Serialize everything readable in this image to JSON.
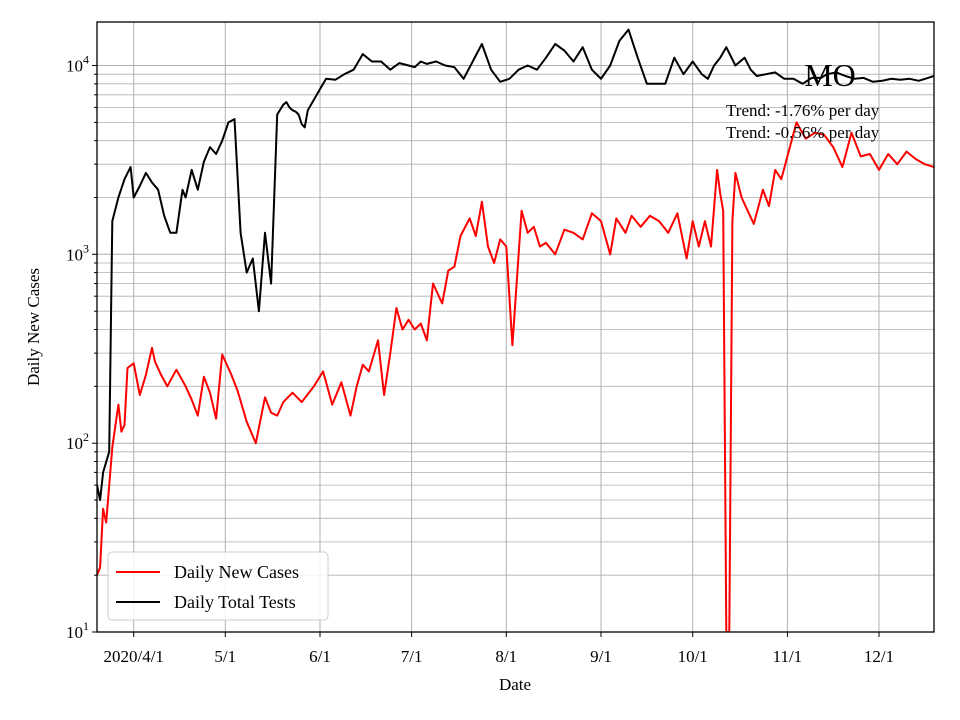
{
  "chart_data": {
    "type": "line",
    "title": "MO",
    "xlabel": "Date",
    "ylabel": "Daily New Cases",
    "y_scale": "log",
    "ylim": [
      10,
      17000
    ],
    "xlim": [
      "2020-03-20",
      "2020-12-19"
    ],
    "x_ticks": [
      {
        "date": "2020-04-01",
        "label": "2020/4/1"
      },
      {
        "date": "2020-05-01",
        "label": "5/1"
      },
      {
        "date": "2020-06-01",
        "label": "6/1"
      },
      {
        "date": "2020-07-01",
        "label": "7/1"
      },
      {
        "date": "2020-08-01",
        "label": "8/1"
      },
      {
        "date": "2020-09-01",
        "label": "9/1"
      },
      {
        "date": "2020-10-01",
        "label": "10/1"
      },
      {
        "date": "2020-11-01",
        "label": "11/1"
      },
      {
        "date": "2020-12-01",
        "label": "12/1"
      }
    ],
    "y_ticks": [
      {
        "value": 10,
        "base": "10",
        "exp": "1"
      },
      {
        "value": 100,
        "base": "10",
        "exp": "2"
      },
      {
        "value": 1000,
        "base": "10",
        "exp": "3"
      },
      {
        "value": 10000,
        "base": "10",
        "exp": "4"
      }
    ],
    "grid": true,
    "legend_position": "lower-left",
    "annotations": [
      "Trend: -1.76% per day",
      "Trend: -0.56% per day"
    ],
    "series": [
      {
        "name": "Daily New Cases",
        "color": "#ff0000",
        "x": [
          "2020-03-20",
          "2020-03-21",
          "2020-03-22",
          "2020-03-23",
          "2020-03-25",
          "2020-03-27",
          "2020-03-28",
          "2020-03-29",
          "2020-03-30",
          "2020-04-01",
          "2020-04-03",
          "2020-04-05",
          "2020-04-07",
          "2020-04-08",
          "2020-04-10",
          "2020-04-12",
          "2020-04-15",
          "2020-04-18",
          "2020-04-20",
          "2020-04-22",
          "2020-04-24",
          "2020-04-26",
          "2020-04-28",
          "2020-04-30",
          "2020-05-03",
          "2020-05-05",
          "2020-05-08",
          "2020-05-11",
          "2020-05-14",
          "2020-05-16",
          "2020-05-18",
          "2020-05-20",
          "2020-05-23",
          "2020-05-26",
          "2020-05-30",
          "2020-06-02",
          "2020-06-05",
          "2020-06-08",
          "2020-06-11",
          "2020-06-13",
          "2020-06-15",
          "2020-06-17",
          "2020-06-20",
          "2020-06-22",
          "2020-06-24",
          "2020-06-26",
          "2020-06-28",
          "2020-06-30",
          "2020-07-02",
          "2020-07-04",
          "2020-07-06",
          "2020-07-08",
          "2020-07-11",
          "2020-07-13",
          "2020-07-15",
          "2020-07-17",
          "2020-07-20",
          "2020-07-22",
          "2020-07-24",
          "2020-07-26",
          "2020-07-28",
          "2020-07-30",
          "2020-08-01",
          "2020-08-03",
          "2020-08-06",
          "2020-08-08",
          "2020-08-10",
          "2020-08-12",
          "2020-08-14",
          "2020-08-17",
          "2020-08-20",
          "2020-08-23",
          "2020-08-26",
          "2020-08-29",
          "2020-09-01",
          "2020-09-04",
          "2020-09-06",
          "2020-09-09",
          "2020-09-11",
          "2020-09-14",
          "2020-09-17",
          "2020-09-20",
          "2020-09-23",
          "2020-09-26",
          "2020-09-29",
          "2020-10-01",
          "2020-10-03",
          "2020-10-05",
          "2020-10-07",
          "2020-10-09",
          "2020-10-10",
          "2020-10-11",
          "2020-10-12",
          "2020-10-13",
          "2020-10-14",
          "2020-10-15",
          "2020-10-17",
          "2020-10-19",
          "2020-10-21",
          "2020-10-24",
          "2020-10-26",
          "2020-10-28",
          "2020-10-30",
          "2020-11-01",
          "2020-11-04",
          "2020-11-07",
          "2020-11-10",
          "2020-11-13",
          "2020-11-16",
          "2020-11-19",
          "2020-11-22",
          "2020-11-25",
          "2020-11-28",
          "2020-12-01",
          "2020-12-04",
          "2020-12-07",
          "2020-12-10",
          "2020-12-13",
          "2020-12-16",
          "2020-12-19"
        ],
        "y": [
          20,
          22,
          45,
          38,
          95,
          160,
          115,
          125,
          250,
          265,
          180,
          230,
          320,
          270,
          230,
          200,
          245,
          200,
          170,
          140,
          225,
          185,
          135,
          295,
          230,
          190,
          130,
          100,
          175,
          145,
          140,
          165,
          185,
          165,
          200,
          240,
          160,
          210,
          140,
          200,
          260,
          240,
          350,
          180,
          300,
          520,
          400,
          450,
          400,
          430,
          350,
          700,
          550,
          820,
          860,
          1250,
          1550,
          1250,
          1900,
          1100,
          900,
          1200,
          1100,
          330,
          1700,
          1300,
          1400,
          1100,
          1150,
          1000,
          1350,
          1300,
          1200,
          1650,
          1500,
          1000,
          1550,
          1300,
          1600,
          1400,
          1600,
          1500,
          1300,
          1650,
          950,
          1500,
          1100,
          1500,
          1100,
          2800,
          2100,
          1700,
          10,
          10,
          1500,
          2700,
          2000,
          1700,
          1450,
          2200,
          1800,
          2800,
          2500,
          3300,
          5000,
          4100,
          4400,
          4300,
          3700,
          2900,
          4400,
          3300,
          3400,
          2800,
          3400,
          3000,
          3500,
          3200,
          3000,
          2900
        ]
      },
      {
        "name": "Daily Total Tests",
        "color": "#000000",
        "x": [
          "2020-03-20",
          "2020-03-21",
          "2020-03-22",
          "2020-03-24",
          "2020-03-25",
          "2020-03-27",
          "2020-03-29",
          "2020-03-31",
          "2020-04-01",
          "2020-04-03",
          "2020-04-05",
          "2020-04-07",
          "2020-04-09",
          "2020-04-11",
          "2020-04-13",
          "2020-04-15",
          "2020-04-17",
          "2020-04-18",
          "2020-04-20",
          "2020-04-22",
          "2020-04-24",
          "2020-04-26",
          "2020-04-28",
          "2020-04-30",
          "2020-05-02",
          "2020-05-04",
          "2020-05-06",
          "2020-05-08",
          "2020-05-10",
          "2020-05-12",
          "2020-05-14",
          "2020-05-16",
          "2020-05-18",
          "2020-05-20",
          "2020-05-21",
          "2020-05-22",
          "2020-05-23",
          "2020-05-24",
          "2020-05-25",
          "2020-05-26",
          "2020-05-27",
          "2020-05-28",
          "2020-06-01",
          "2020-06-03",
          "2020-06-06",
          "2020-06-09",
          "2020-06-12",
          "2020-06-15",
          "2020-06-18",
          "2020-06-21",
          "2020-06-24",
          "2020-06-27",
          "2020-06-30",
          "2020-07-02",
          "2020-07-04",
          "2020-07-06",
          "2020-07-09",
          "2020-07-12",
          "2020-07-15",
          "2020-07-18",
          "2020-07-21",
          "2020-07-24",
          "2020-07-27",
          "2020-07-30",
          "2020-08-02",
          "2020-08-05",
          "2020-08-08",
          "2020-08-11",
          "2020-08-14",
          "2020-08-17",
          "2020-08-20",
          "2020-08-23",
          "2020-08-26",
          "2020-08-29",
          "2020-09-01",
          "2020-09-04",
          "2020-09-07",
          "2020-09-10",
          "2020-09-13",
          "2020-09-16",
          "2020-09-19",
          "2020-09-22",
          "2020-09-25",
          "2020-09-28",
          "2020-10-01",
          "2020-10-04",
          "2020-10-06",
          "2020-10-08",
          "2020-10-10",
          "2020-10-12",
          "2020-10-15",
          "2020-10-18",
          "2020-10-20",
          "2020-10-22",
          "2020-10-25",
          "2020-10-28",
          "2020-10-31",
          "2020-11-03",
          "2020-11-06",
          "2020-11-09",
          "2020-11-12",
          "2020-11-14",
          "2020-11-17",
          "2020-11-20",
          "2020-11-23",
          "2020-11-26",
          "2020-11-29",
          "2020-12-02",
          "2020-12-05",
          "2020-12-08",
          "2020-12-11",
          "2020-12-14",
          "2020-12-17",
          "2020-12-19"
        ],
        "y": [
          60,
          50,
          70,
          90,
          1500,
          2000,
          2500,
          2900,
          2000,
          2300,
          2700,
          2400,
          2200,
          1600,
          1300,
          1300,
          2200,
          2000,
          2800,
          2200,
          3100,
          3700,
          3400,
          4000,
          5000,
          5200,
          1300,
          800,
          950,
          500,
          1300,
          700,
          5500,
          6200,
          6400,
          6000,
          5800,
          5700,
          5500,
          4900,
          4700,
          5800,
          7500,
          8500,
          8400,
          9000,
          9500,
          11500,
          10500,
          10500,
          9500,
          10300,
          10000,
          9800,
          10500,
          10200,
          10500,
          10000,
          9800,
          8500,
          10500,
          13000,
          9500,
          8200,
          8500,
          9500,
          10000,
          9500,
          11000,
          13000,
          12000,
          10500,
          12500,
          9500,
          8500,
          10000,
          13500,
          15500,
          11000,
          8000,
          8000,
          8000,
          11000,
          9000,
          10500,
          9000,
          8500,
          10000,
          11000,
          12500,
          10000,
          11000,
          9500,
          8800,
          9000,
          9200,
          8500,
          8500,
          8000,
          8600,
          8600,
          9000,
          9200,
          8800,
          8500,
          8600,
          8200,
          8300,
          8500,
          8400,
          8500,
          8300,
          8600,
          8800
        ]
      }
    ]
  }
}
